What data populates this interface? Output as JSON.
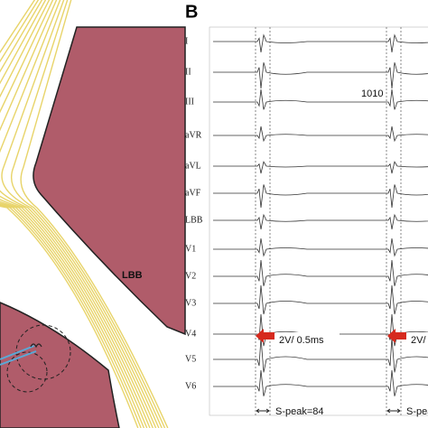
{
  "panel_label": "B",
  "left_panel": {
    "label": "LBB"
  },
  "leads": [
    "I",
    "II",
    "III",
    "aVR",
    "aVL",
    "aVF",
    "LBB",
    "V1",
    "V2",
    "V3",
    "V4",
    "V5",
    "V6"
  ],
  "annotations": {
    "marker": "1010",
    "scale": "2V/ 0.5ms",
    "s_peak": "S-peak=84"
  }
}
